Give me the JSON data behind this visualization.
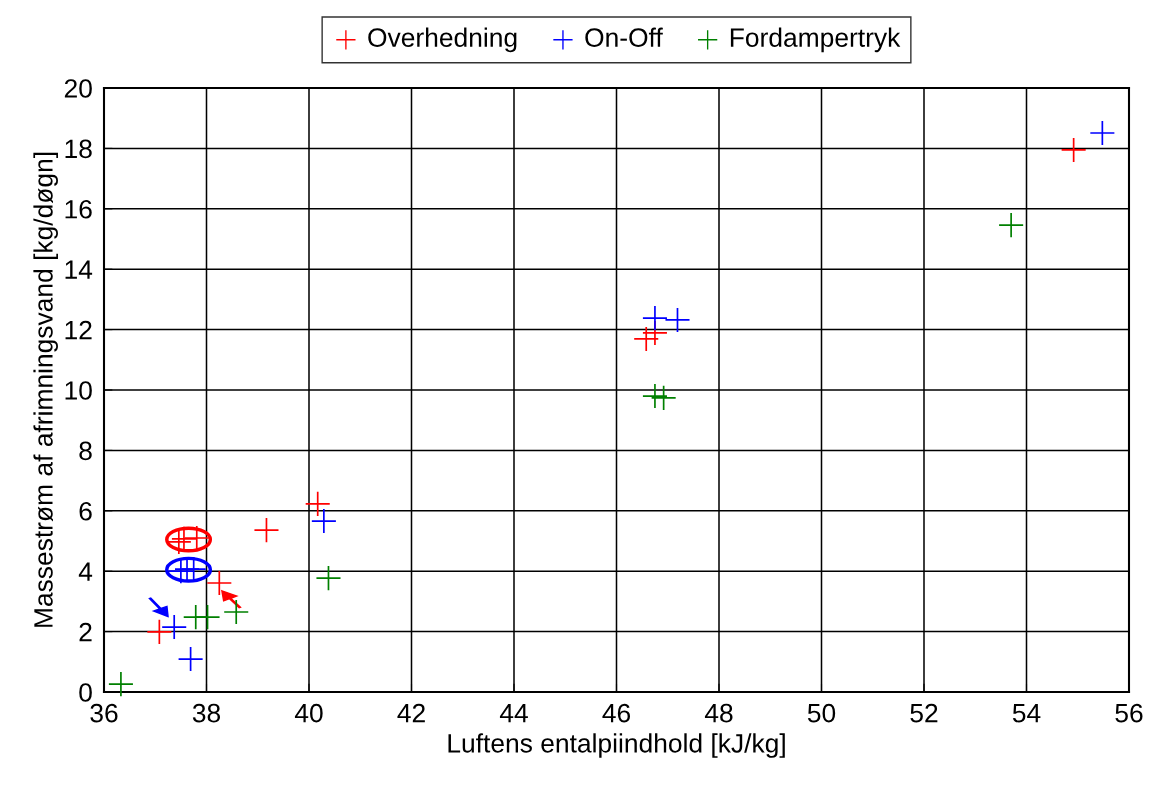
{
  "chart_data": {
    "type": "scatter",
    "xlabel": "Luftens entalpiindhold [kJ/kg]",
    "ylabel": "Massestrøm af afrimningsvand [kg/døgn]",
    "xlim": [
      36,
      56
    ],
    "xticks": [
      36,
      38,
      40,
      42,
      44,
      46,
      48,
      50,
      52,
      54,
      56
    ],
    "ylim": [
      0,
      20
    ],
    "yticks": [
      0,
      2,
      4,
      6,
      8,
      10,
      12,
      14,
      16,
      18,
      20
    ],
    "grid": true,
    "legend": "top",
    "marker": "cross",
    "series": [
      {
        "name": "Overhedning",
        "color": "#ff0000",
        "x": [
          37.08,
          37.46,
          37.56,
          37.81,
          38.25,
          39.17,
          40.17,
          46.58,
          46.75,
          54.92
        ],
        "values": [
          1.99,
          4.97,
          5.07,
          5.1,
          3.61,
          5.36,
          6.23,
          11.69,
          11.89,
          17.95
        ]
      },
      {
        "name": "On-Off",
        "color": "#0000ff",
        "x": [
          37.37,
          37.69,
          37.5,
          37.62,
          37.75,
          40.29,
          46.75,
          47.19,
          55.48
        ],
        "values": [
          2.15,
          1.09,
          4.0,
          4.07,
          4.07,
          5.66,
          12.38,
          12.32,
          18.51
        ]
      },
      {
        "name": "Fordampertryk",
        "color": "#008000",
        "x": [
          36.33,
          37.79,
          38.02,
          38.58,
          40.38,
          46.75,
          46.92,
          53.7
        ],
        "values": [
          0.26,
          2.48,
          2.48,
          2.65,
          3.77,
          9.8,
          9.74,
          15.46
        ]
      }
    ]
  }
}
